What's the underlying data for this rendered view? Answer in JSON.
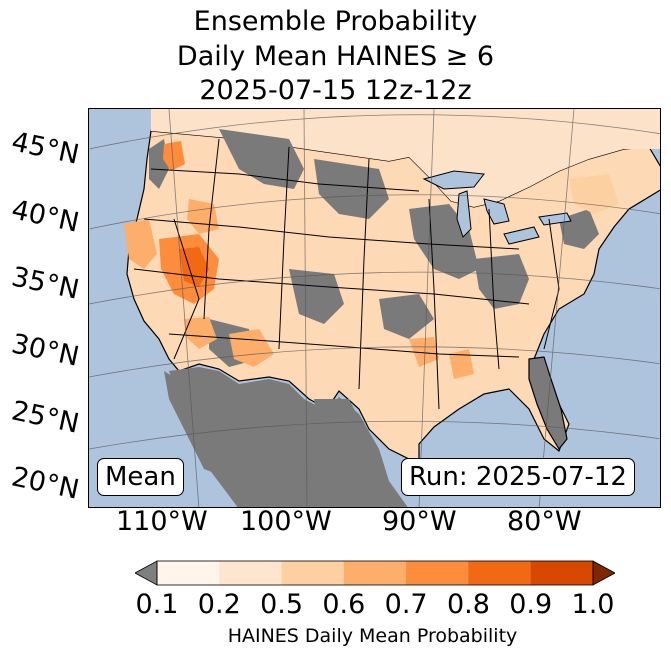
{
  "title": {
    "line1": "Ensemble Probability",
    "line2": "Daily Mean HAINES ≥ 6",
    "line3": "2025-07-15 12z-12z"
  },
  "map": {
    "latitude_labels": [
      "45°N",
      "40°N",
      "35°N",
      "30°N",
      "25°N",
      "20°N"
    ],
    "longitude_labels": [
      "110°W",
      "100°W",
      "90°W",
      "80°W"
    ],
    "mean_label": "Mean",
    "run_label": "Run: 2025-07-12",
    "colors": {
      "ocean": "#aec3dc",
      "below_threshold": "#7a7a7a",
      "lakes": "#aec3dc"
    }
  },
  "colorbar": {
    "label": "HAINES Daily Mean Probability",
    "ticks": [
      "0.1",
      "0.2",
      "0.5",
      "0.6",
      "0.7",
      "0.8",
      "0.9",
      "1.0"
    ],
    "under_color": "#7f7f7f",
    "over_color": "#7f2704",
    "bin_colors": [
      "#fff5eb",
      "#fee6ce",
      "#fdd0a2",
      "#fdae6b",
      "#fd8d3c",
      "#f16913",
      "#d94801"
    ]
  }
}
